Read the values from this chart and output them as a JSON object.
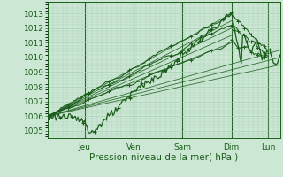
{
  "background_color": "#cce8d4",
  "grid_color": "#aacfb5",
  "line_color": "#1a5c1a",
  "axis_color": "#1a5c1a",
  "text_color": "#1a5c1a",
  "ylabel": "Pression niveau de la mer( hPa )",
  "ylim": [
    1004.5,
    1013.8
  ],
  "yticks": [
    1005,
    1006,
    1007,
    1008,
    1009,
    1010,
    1011,
    1012,
    1013
  ],
  "day_labels": [
    "Jeu",
    "Ven",
    "Sam",
    "Dim",
    "Lun"
  ],
  "tick_fontsize": 6.5,
  "xlabel_fontsize": 7.5
}
